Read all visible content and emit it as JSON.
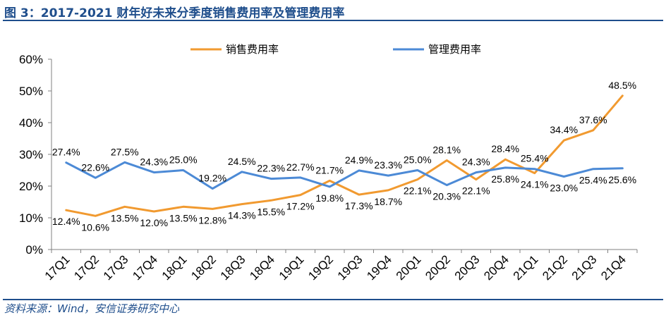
{
  "figure": {
    "title": "图 3：2017-2021 财年好未来分季度销售费用率及管理费用率",
    "source": "资料来源：Wind，安信证券研究中心"
  },
  "colors": {
    "header_blue": "#1f4e8c",
    "series_sales": "#f19a30",
    "series_admin": "#4c8ad6",
    "axis": "#808080"
  },
  "chart_data": {
    "type": "line",
    "title": "",
    "xlabel": "",
    "ylabel": "",
    "categories": [
      "17Q1",
      "17Q2",
      "17Q3",
      "17Q4",
      "18Q1",
      "18Q2",
      "18Q3",
      "18Q4",
      "19Q1",
      "19Q2",
      "19Q3",
      "19Q4",
      "20Q1",
      "20Q2",
      "20Q3",
      "20Q4",
      "21Q1",
      "21Q2",
      "21Q3",
      "21Q4"
    ],
    "ylim": [
      0,
      60
    ],
    "yticks": [
      "0%",
      "10%",
      "20%",
      "30%",
      "40%",
      "50%",
      "60%"
    ],
    "ytick_values": [
      0,
      10,
      20,
      30,
      40,
      50,
      60
    ],
    "grid": false,
    "legend_placement": "top",
    "series": [
      {
        "name": "销售费用率",
        "color": "#f19a30",
        "values": [
          12.4,
          10.6,
          13.5,
          12.0,
          13.5,
          12.8,
          14.3,
          15.5,
          17.2,
          21.7,
          17.3,
          18.7,
          22.1,
          28.1,
          22.1,
          28.4,
          24.1,
          34.4,
          37.6,
          48.5
        ],
        "labels": [
          "12.4%",
          "10.6%",
          "13.5%",
          "12.0%",
          "13.5%",
          "12.8%",
          "14.3%",
          "15.5%",
          "17.2%",
          "21.7%",
          "17.3%",
          "18.7%",
          "22.1%",
          "28.1%",
          "22.1%",
          "28.4%",
          "24.1%",
          "34.4%",
          "37.6%",
          "48.5%"
        ]
      },
      {
        "name": "管理费用率",
        "color": "#4c8ad6",
        "values": [
          27.4,
          22.6,
          27.5,
          24.3,
          25.0,
          19.2,
          24.5,
          22.3,
          22.7,
          19.8,
          24.9,
          23.3,
          25.0,
          20.3,
          24.3,
          25.8,
          25.4,
          23.0,
          25.4,
          25.6
        ],
        "labels": [
          "27.4%",
          "22.6%",
          "27.5%",
          "24.3%",
          "25.0%",
          "19.2%",
          "24.5%",
          "22.3%",
          "22.7%",
          "19.8%",
          "24.9%",
          "23.3%",
          "25.0%",
          "20.3%",
          "24.3%",
          "25.8%",
          "25.4%",
          "23.0%",
          "25.4%",
          "25.6%"
        ]
      }
    ]
  }
}
